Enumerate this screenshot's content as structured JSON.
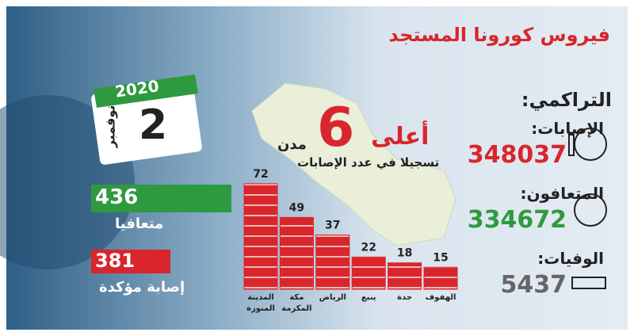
{
  "header": {
    "title": "فيروس كورونا المستجد"
  },
  "calendar": {
    "year": "2020",
    "day": "2",
    "month": "نوفمبر"
  },
  "daily": {
    "recovered": {
      "value": "436",
      "label": "متعافيا"
    },
    "confirmed": {
      "value": "381",
      "label": "إصابة مؤكدة"
    }
  },
  "cumulative": {
    "title": "التراكمي:",
    "items": [
      {
        "label": "الإصابات:",
        "value": "348037"
      },
      {
        "label": "المتعافون:",
        "value": "334672"
      },
      {
        "label": "الوفيات:",
        "value": "5437"
      }
    ]
  },
  "headline": {
    "top": "أعلى",
    "number": "6",
    "word": "مدن",
    "sub": "تسجيلا في عدد الإصابات"
  },
  "chart_data": {
    "type": "bar",
    "categories": [
      "المدينة المنورة",
      "مكة المكرمة",
      "الرياض",
      "ينبع",
      "جدة",
      "الهفوف"
    ],
    "values": [
      72,
      49,
      37,
      22,
      18,
      15
    ],
    "color": "#d8262c"
  }
}
